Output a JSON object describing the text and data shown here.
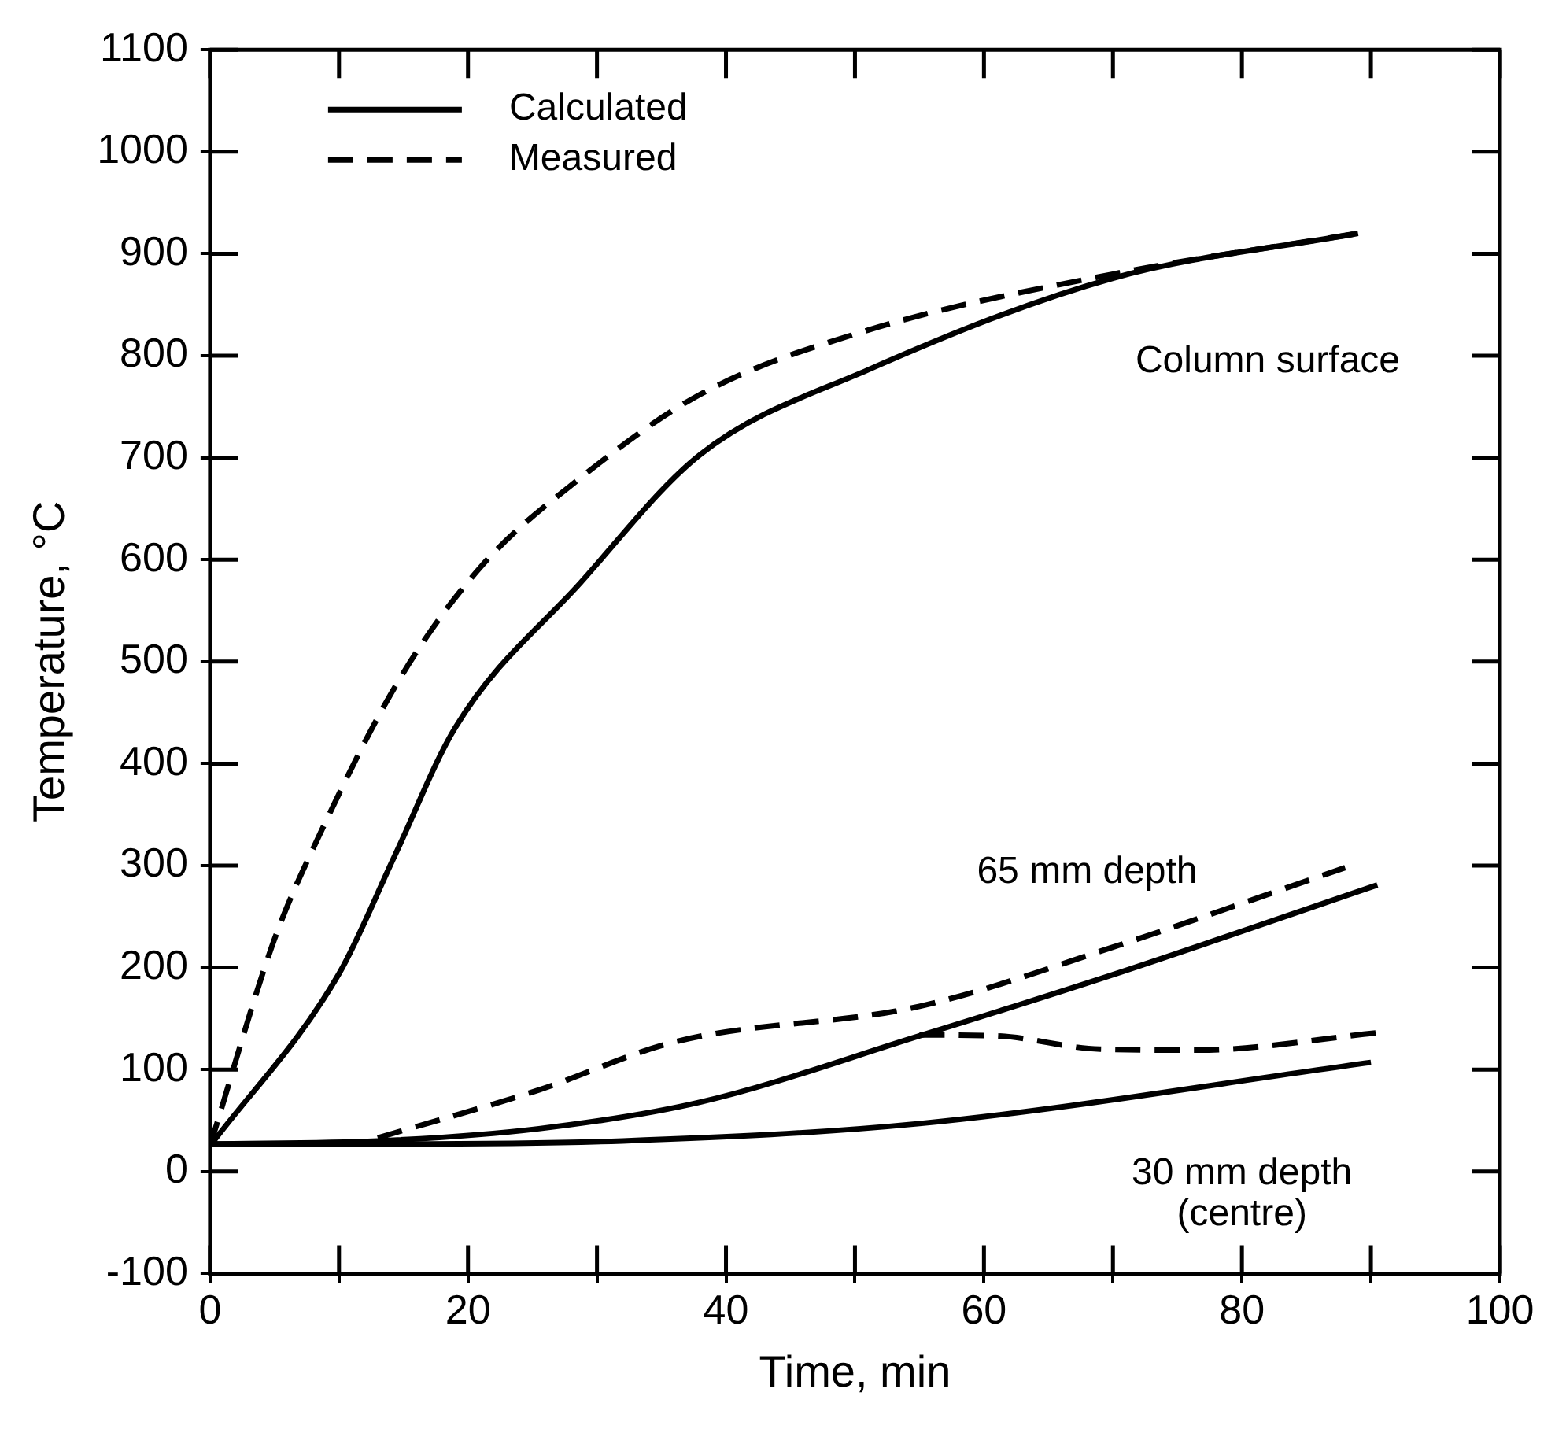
{
  "chart_data": {
    "type": "line",
    "xlabel": "Time, min",
    "ylabel": "Temperature, °C",
    "xlim": [
      0,
      100
    ],
    "xticks": [
      0,
      {
        "value": 10,
        "label": null
      },
      20,
      {
        "value": 30,
        "label": null
      },
      40,
      {
        "value": 50,
        "label": null
      },
      60,
      {
        "value": 70,
        "label": null
      },
      80,
      {
        "value": 90,
        "label": null
      },
      100
    ],
    "ylim": [
      -100,
      1100
    ],
    "yticks": [
      -100,
      0,
      100,
      200,
      300,
      400,
      500,
      600,
      700,
      800,
      900,
      1000,
      1100
    ],
    "grid": false,
    "legend": "top left",
    "marker": "none",
    "series": [
      {
        "name": "Calculated",
        "color": "#000000",
        "line_style": "solid",
        "x": [
          0,
          10,
          14.3,
          19,
          28.7,
          38,
          51,
          70,
          89
        ],
        "values": [
          25,
          194,
          309,
          435,
          577,
          703,
          786,
          876,
          920
        ]
      },
      {
        "name": "Measured",
        "color": "#000000",
        "line_style": "dashed",
        "x": [
          0,
          5,
          8.3,
          14.7,
          21,
          28.7,
          38,
          51,
          70,
          89
        ],
        "values": [
          25,
          228,
          325,
          483,
          593,
          680,
          762,
          825,
          880,
          920
        ]
      },
      {
        "color": "#000000",
        "line_style": "solid",
        "x": [
          0,
          13,
          25.5,
          38,
          55,
          70,
          90.5
        ],
        "values": [
          27,
          30,
          42,
          68,
          133,
          193,
          281
        ]
      },
      {
        "color": "#000000",
        "line_style": "dashed",
        "x": [
          13,
          25.5,
          36,
          55,
          70,
          88
        ],
        "values": [
          33,
          80,
          127,
          162,
          220,
          298
        ]
      },
      {
        "color": "#000000",
        "line_style": "solid",
        "x": [
          0,
          13,
          32,
          55,
          90
        ],
        "values": [
          27,
          27,
          30,
          47,
          107
        ]
      },
      {
        "color": "#000000",
        "line_style": "dashed",
        "x": [
          55,
          61,
          69,
          76.5,
          90.5
        ],
        "values": [
          134,
          133,
          120,
          119,
          136
        ]
      }
    ],
    "annotations": [
      "Column surface",
      "65 mm depth",
      "30 mm depth\n(centre)"
    ]
  }
}
